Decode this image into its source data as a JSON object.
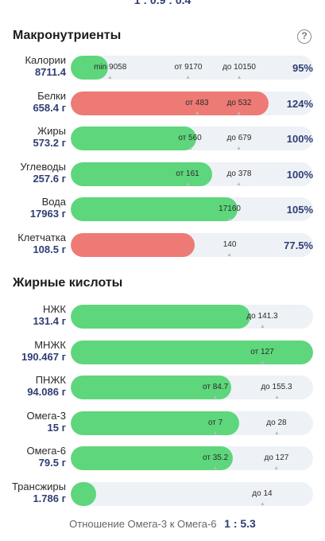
{
  "top_ratio": "1 : 0.9 : 0.4",
  "macros": {
    "title": "Макронутриенты",
    "rows": [
      {
        "label": "Калории",
        "value": "8711.4",
        "pct": "95%",
        "fill": 0.154,
        "color": "green",
        "marks": [
          {
            "text": "min 9058",
            "at": 0.163
          },
          {
            "text": "от 9170",
            "at": 0.485
          },
          {
            "text": "до 10150",
            "at": 0.695
          }
        ]
      },
      {
        "label": "Белки",
        "value": "658.4 г",
        "pct": "124%",
        "fill": 0.818,
        "color": "red",
        "marks": [
          {
            "text": "от 483",
            "at": 0.521
          },
          {
            "text": "до 532",
            "at": 0.695
          }
        ]
      },
      {
        "label": "Жиры",
        "value": "573.2 г",
        "pct": "100%",
        "fill": 0.518,
        "color": "green",
        "marks": [
          {
            "text": "от 560",
            "at": 0.492
          },
          {
            "text": "до 679",
            "at": 0.695
          }
        ]
      },
      {
        "label": "Углеводы",
        "value": "257.6 г",
        "pct": "100%",
        "fill": 0.584,
        "color": "green",
        "marks": [
          {
            "text": "от 161",
            "at": 0.482
          },
          {
            "text": "до 378",
            "at": 0.695
          }
        ]
      },
      {
        "label": "Вода",
        "value": "17963 г",
        "pct": "105%",
        "fill": 0.689,
        "color": "green",
        "marks": [
          {
            "text": "17160",
            "at": 0.656
          }
        ]
      },
      {
        "label": "Клетчатка",
        "value": "108.5 г",
        "pct": "77.5%",
        "fill": 0.51,
        "color": "red",
        "marks": [
          {
            "text": "140",
            "at": 0.656
          }
        ]
      }
    ]
  },
  "fatty": {
    "title": "Жирные кислоты",
    "rows": [
      {
        "label": "НЖК",
        "value": "131.4 г",
        "fill": 0.741,
        "color": "green",
        "marks": [
          {
            "text": "до 141.3",
            "at": 0.79
          }
        ]
      },
      {
        "label": "МНЖК",
        "value": "190.467 г",
        "fill": 1.0,
        "color": "green",
        "marks": [
          {
            "text": "от 127",
            "at": 0.79
          }
        ]
      },
      {
        "label": "ПНЖК",
        "value": "94.086 г",
        "fill": 0.662,
        "color": "green",
        "marks": [
          {
            "text": "от 84.7",
            "at": 0.597
          },
          {
            "text": "до 155.3",
            "at": 0.849
          }
        ]
      },
      {
        "label": "Омега-3",
        "value": "15 г",
        "fill": 0.695,
        "color": "green",
        "marks": [
          {
            "text": "от 7",
            "at": 0.597
          },
          {
            "text": "до 28",
            "at": 0.849
          }
        ]
      },
      {
        "label": "Омега-6",
        "value": "79.5 г",
        "fill": 0.669,
        "color": "green",
        "marks": [
          {
            "text": "от 35.2",
            "at": 0.597
          },
          {
            "text": "до 127",
            "at": 0.849
          }
        ]
      },
      {
        "label": "Трансжиры",
        "value": "1.786 г",
        "fill": 0.105,
        "color": "green",
        "marks": [
          {
            "text": "до 14",
            "at": 0.79
          }
        ]
      }
    ]
  },
  "footer": {
    "text": "Отношение Омега-3 к Омега-6",
    "ratio": "1 : 5.3"
  },
  "help_icon": "question-circle-icon",
  "colors": {
    "green": "#5ed67c",
    "red": "#ee7a75",
    "track": "#eef2f6",
    "value": "#2f3d73"
  }
}
